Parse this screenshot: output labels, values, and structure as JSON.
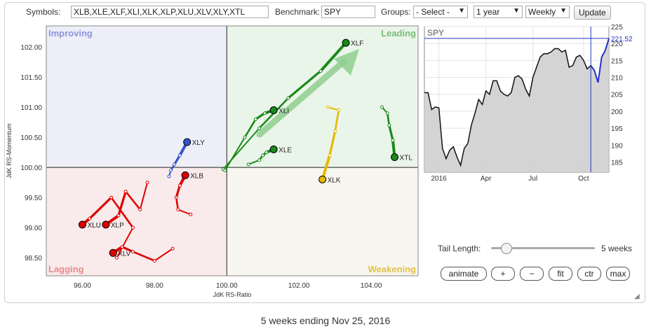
{
  "toolbar": {
    "symbols_label": "Symbols:",
    "symbols_value": "XLB,XLE,XLF,XLI,XLK,XLP,XLU,XLV,XLY,XTL",
    "benchmark_label": "Benchmark:",
    "benchmark_value": "SPY",
    "groups_label": "Groups:",
    "groups_value": "- Select -",
    "period_value": "1 year",
    "frequency_value": "Weekly",
    "update_label": "Update"
  },
  "rrg": {
    "quadrants": {
      "improving": "Improving",
      "leading": "Leading",
      "lagging": "Lagging",
      "weakening": "Weakening"
    },
    "colors": {
      "improving_bg": "#eeeef8",
      "leading_bg": "#eaf5ea",
      "lagging_bg": "#f9ebeb",
      "weakening_bg": "#f7f6ee",
      "improving_text": "#8e95dc",
      "leading_text": "#7bbd7b",
      "lagging_text": "#e58a8a",
      "weakening_text": "#e3c24a"
    }
  },
  "chart_data": [
    {
      "type": "scatter",
      "title": "",
      "xlabel": "JdK RS-Ratio",
      "ylabel": "JdK RS-Momentum",
      "xlim": [
        95.0,
        105.3
      ],
      "ylim": [
        98.2,
        102.35
      ],
      "center": [
        100,
        100
      ],
      "xticks": [
        "96.00",
        "98.00",
        "100.00",
        "102.00",
        "104.00"
      ],
      "yticks": [
        "98.50",
        "99.00",
        "99.50",
        "100.00",
        "100.50",
        "101.00",
        "101.50",
        "102.00"
      ],
      "series": [
        {
          "name": "XLF",
          "color": "#1a8a1a",
          "points": [
            [
              99.9,
              99.97
            ],
            [
              100.9,
              100.65
            ],
            [
              101.7,
              101.15
            ],
            [
              102.6,
              101.6
            ],
            [
              103.3,
              102.07
            ]
          ]
        },
        {
          "name": "XLI",
          "color": "#1a8a1a",
          "points": [
            [
              99.95,
              99.95
            ],
            [
              100.5,
              100.5
            ],
            [
              100.8,
              100.8
            ],
            [
              101.05,
              100.9
            ],
            [
              101.3,
              100.95
            ]
          ]
        },
        {
          "name": "XLE",
          "color": "#1a8a1a",
          "points": [
            [
              100.6,
              100.05
            ],
            [
              100.9,
              100.12
            ],
            [
              101.0,
              100.2
            ],
            [
              101.1,
              100.25
            ],
            [
              101.3,
              100.3
            ]
          ]
        },
        {
          "name": "XTL",
          "color": "#1a8a1a",
          "points": [
            [
              104.3,
              101.0
            ],
            [
              104.45,
              100.9
            ],
            [
              104.5,
              100.7
            ],
            [
              104.6,
              100.45
            ],
            [
              104.65,
              100.17
            ]
          ]
        },
        {
          "name": "XLK",
          "color": "#e6b800",
          "points": [
            [
              102.8,
              101.0
            ],
            [
              103.1,
              100.95
            ],
            [
              103.0,
              100.6
            ],
            [
              102.85,
              100.2
            ],
            [
              102.65,
              99.8
            ]
          ]
        },
        {
          "name": "XLY",
          "color": "#3355cc",
          "points": [
            [
              98.4,
              99.85
            ],
            [
              98.45,
              99.95
            ],
            [
              98.55,
              100.05
            ],
            [
              98.7,
              100.2
            ],
            [
              98.9,
              100.42
            ]
          ]
        },
        {
          "name": "XLB",
          "color": "#e00000",
          "points": [
            [
              99.0,
              99.22
            ],
            [
              98.65,
              99.3
            ],
            [
              98.6,
              99.5
            ],
            [
              98.7,
              99.7
            ],
            [
              98.85,
              99.87
            ]
          ]
        },
        {
          "name": "XLU",
          "color": "#e00000",
          "points": [
            [
              96.95,
              98.5
            ],
            [
              97.4,
              99.0
            ],
            [
              96.8,
              99.5
            ],
            [
              96.2,
              99.15
            ],
            [
              96.0,
              99.05
            ]
          ]
        },
        {
          "name": "XLP",
          "color": "#e00000",
          "points": [
            [
              97.8,
              99.75
            ],
            [
              97.6,
              99.3
            ],
            [
              97.2,
              99.6
            ],
            [
              97.0,
              99.2
            ],
            [
              96.65,
              99.05
            ]
          ]
        },
        {
          "name": "XLV",
          "color": "#e00000",
          "points": [
            [
              98.5,
              98.65
            ],
            [
              98.0,
              98.45
            ],
            [
              97.4,
              98.6
            ],
            [
              97.1,
              98.68
            ],
            [
              96.85,
              98.58
            ]
          ]
        }
      ]
    },
    {
      "type": "area",
      "title": "SPY",
      "ylim": [
        182,
        225
      ],
      "yticks": [
        "185",
        "190",
        "195",
        "200",
        "205",
        "210",
        "215",
        "220",
        "225"
      ],
      "xticks": [
        "2016",
        "Apr",
        "Jul",
        "Oct"
      ],
      "last_value": "221.52",
      "x": [
        "2015-12-04",
        "2015-12-11",
        "2015-12-18",
        "2015-12-25",
        "2016-01-01",
        "2016-01-08",
        "2016-01-15",
        "2016-01-22",
        "2016-01-29",
        "2016-02-05",
        "2016-02-12",
        "2016-02-19",
        "2016-02-26",
        "2016-03-04",
        "2016-03-11",
        "2016-03-18",
        "2016-03-25",
        "2016-04-01",
        "2016-04-08",
        "2016-04-15",
        "2016-04-22",
        "2016-04-29",
        "2016-05-06",
        "2016-05-13",
        "2016-05-20",
        "2016-05-27",
        "2016-06-03",
        "2016-06-10",
        "2016-06-17",
        "2016-06-24",
        "2016-07-01",
        "2016-07-08",
        "2016-07-15",
        "2016-07-22",
        "2016-07-29",
        "2016-08-05",
        "2016-08-12",
        "2016-08-19",
        "2016-08-26",
        "2016-09-02",
        "2016-09-09",
        "2016-09-16",
        "2016-09-23",
        "2016-09-30",
        "2016-10-07",
        "2016-10-14",
        "2016-10-21",
        "2016-10-28",
        "2016-11-04",
        "2016-11-11",
        "2016-11-18",
        "2016-11-25"
      ],
      "values": [
        205.5,
        205.5,
        200.5,
        201.3,
        201.0,
        189.0,
        186.0,
        188.5,
        189.5,
        186.5,
        184.0,
        189.0,
        190.5,
        196.0,
        199.5,
        203.5,
        202.0,
        206.0,
        205.0,
        209.0,
        209.0,
        206.0,
        205.0,
        204.5,
        205.5,
        210.0,
        210.5,
        209.5,
        206.5,
        204.5,
        210.0,
        213.0,
        216.0,
        217.0,
        217.0,
        217.5,
        218.5,
        218.5,
        217.5,
        218.0,
        213.0,
        213.5,
        216.0,
        216.5,
        215.0,
        212.5,
        213.5,
        212.0,
        208.5,
        216.0,
        218.0,
        221.5
      ]
    }
  ],
  "controls": {
    "tail_label": "Tail Length:",
    "tail_value": "5 weeks",
    "animate": "animate",
    "plus": "+",
    "minus": "−",
    "fit": "fit",
    "ctr": "ctr",
    "max": "max"
  },
  "footer": "5 weeks ending Nov 25, 2016"
}
